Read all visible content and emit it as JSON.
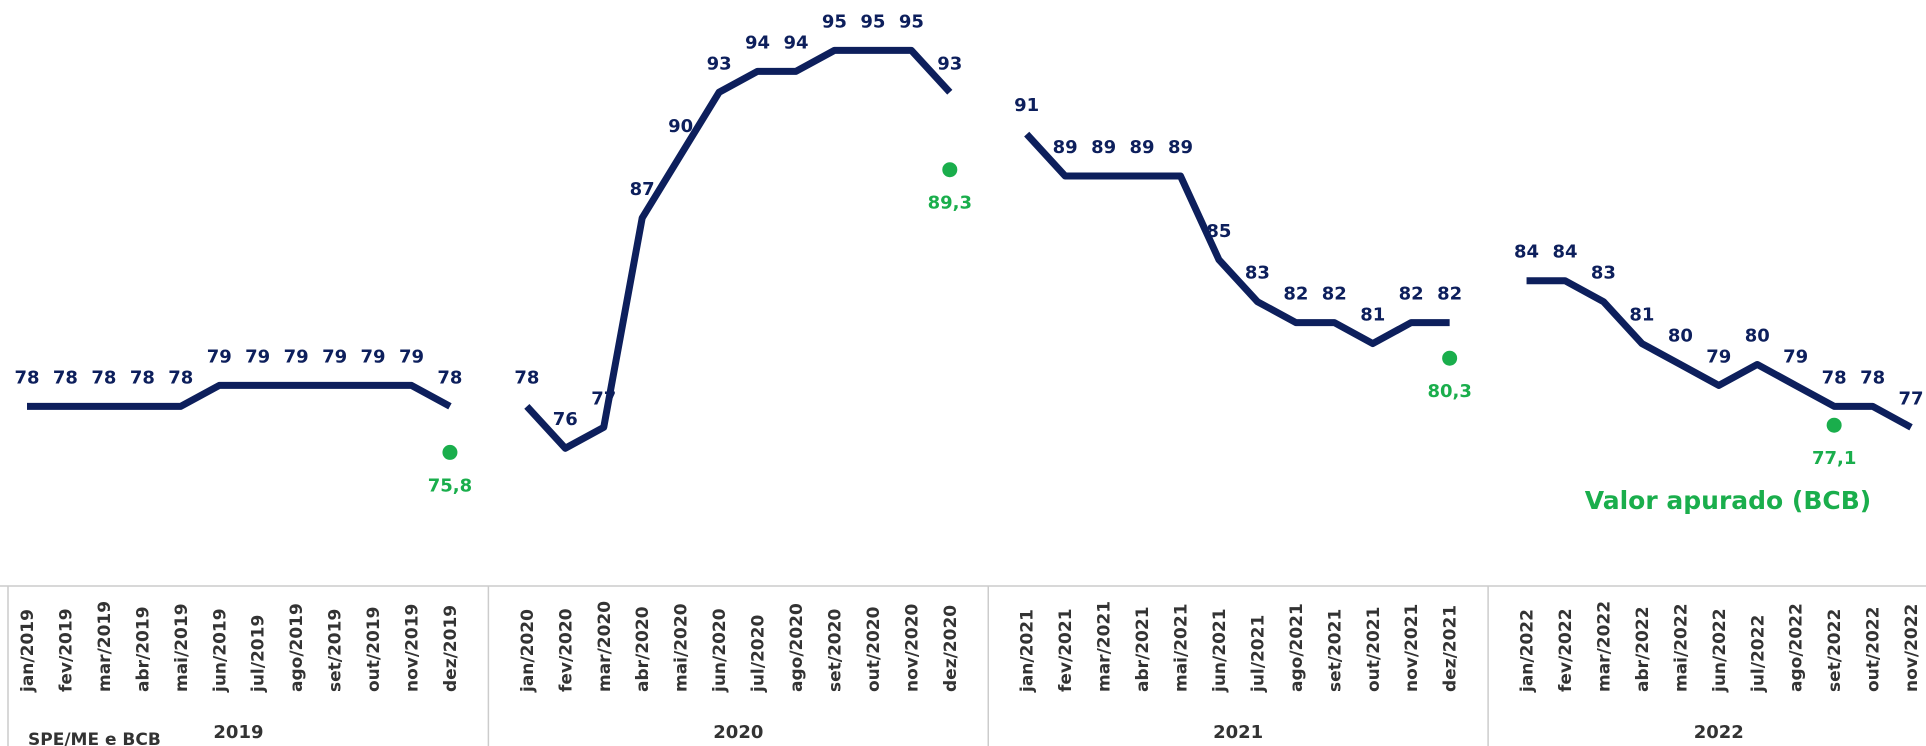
{
  "chart_data": {
    "type": "line",
    "categories": [
      "jan/2019",
      "fev/2019",
      "mar/2019",
      "abr/2019",
      "mai/2019",
      "jun/2019",
      "jul/2019",
      "ago/2019",
      "set/2019",
      "out/2019",
      "nov/2019",
      "dez/2019",
      "jan/2020",
      "fev/2020",
      "mar/2020",
      "abr/2020",
      "mai/2020",
      "jun/2020",
      "jul/2020",
      "ago/2020",
      "set/2020",
      "out/2020",
      "nov/2020",
      "dez/2020",
      "jan/2021",
      "fev/2021",
      "mar/2021",
      "abr/2021",
      "mai/2021",
      "jun/2021",
      "jul/2021",
      "ago/2021",
      "set/2021",
      "out/2021",
      "nov/2021",
      "dez/2021",
      "jan/2022",
      "fev/2022",
      "mar/2022",
      "abr/2022",
      "mai/2022",
      "jun/2022",
      "jul/2022",
      "ago/2022",
      "set/2022",
      "out/2022",
      "nov/2022"
    ],
    "year_labels": [
      "2019",
      "2020",
      "2021",
      "2022"
    ],
    "series": [
      {
        "name": "SPE/ME e BCB",
        "color": "#0d1f5c",
        "values": [
          78,
          78,
          78,
          78,
          78,
          79,
          79,
          79,
          79,
          79,
          79,
          78,
          78,
          76,
          77,
          87,
          90,
          93,
          94,
          94,
          95,
          95,
          95,
          93,
          91,
          89,
          89,
          89,
          89,
          85,
          83,
          82,
          82,
          81,
          82,
          82,
          84,
          84,
          83,
          81,
          80,
          79,
          80,
          79,
          78,
          78,
          77
        ]
      },
      {
        "name": "Valor apurado (BCB)",
        "color": "#1aae4c",
        "values": [
          null,
          null,
          null,
          null,
          null,
          null,
          null,
          null,
          null,
          null,
          null,
          75.8,
          null,
          null,
          null,
          null,
          null,
          null,
          null,
          null,
          null,
          null,
          null,
          89.3,
          null,
          null,
          null,
          null,
          null,
          null,
          null,
          null,
          null,
          null,
          null,
          80.3,
          null,
          null,
          null,
          null,
          null,
          null,
          null,
          null,
          77.1,
          null,
          null
        ],
        "value_labels": [
          null,
          null,
          null,
          null,
          null,
          null,
          null,
          null,
          null,
          null,
          null,
          "75,8",
          null,
          null,
          null,
          null,
          null,
          null,
          null,
          null,
          null,
          null,
          null,
          "89,3",
          null,
          null,
          null,
          null,
          null,
          null,
          null,
          null,
          null,
          null,
          null,
          "80,3",
          null,
          null,
          null,
          null,
          null,
          null,
          null,
          null,
          "77,1",
          null,
          null
        ]
      }
    ],
    "ylim": [
      72,
      97
    ]
  }
}
